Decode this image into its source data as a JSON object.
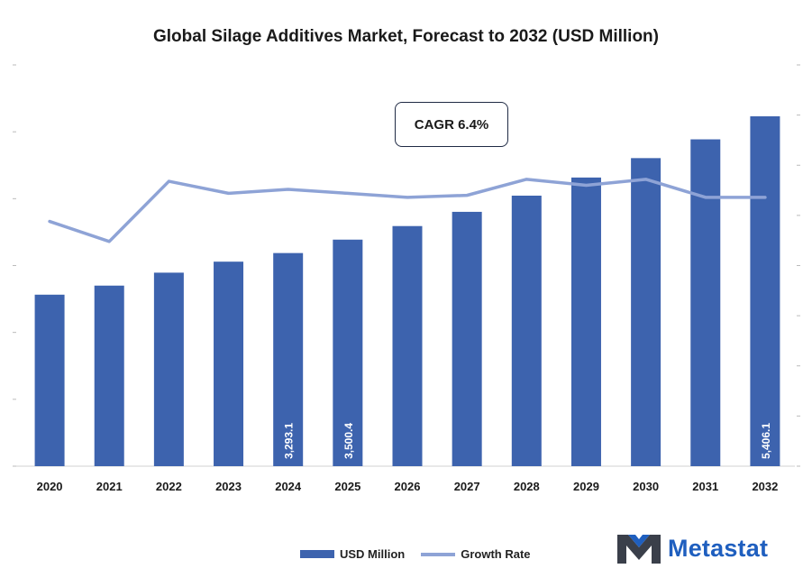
{
  "chart_data": {
    "type": "bar",
    "title": "Global Silage Additives Market, Forecast to 2032 (USD Million)",
    "categories": [
      "2020",
      "2021",
      "2022",
      "2023",
      "2024",
      "2025",
      "2026",
      "2027",
      "2028",
      "2029",
      "2030",
      "2031",
      "2032"
    ],
    "series": [
      {
        "name": "USD Million",
        "type": "bar",
        "color": "#3d63ae",
        "values": [
          2650,
          2790,
          2990,
          3160,
          3293.1,
          3500.4,
          3710,
          3930,
          4180,
          4460,
          4760,
          5050,
          5406.1
        ],
        "data_labels": {
          "4": "3,293.1",
          "5": "3,500.4",
          "12": "5,406.1"
        }
      },
      {
        "name": "Growth Rate",
        "type": "line",
        "color": "#8ea3d6",
        "values": [
          6.1,
          5.6,
          7.1,
          6.8,
          6.9,
          6.8,
          6.7,
          6.75,
          7.15,
          7.0,
          7.15,
          6.7,
          6.7
        ]
      }
    ],
    "ylim": [
      0,
      6200
    ],
    "y2lim": [
      0,
      10
    ],
    "grid": false,
    "legend_position": "bottom-center",
    "annotation": "CAGR 6.4%"
  },
  "legend": {
    "bar_label": "USD Million",
    "line_label": "Growth Rate"
  },
  "brand": {
    "name": "Metastat",
    "color": "#1f5fbf"
  }
}
